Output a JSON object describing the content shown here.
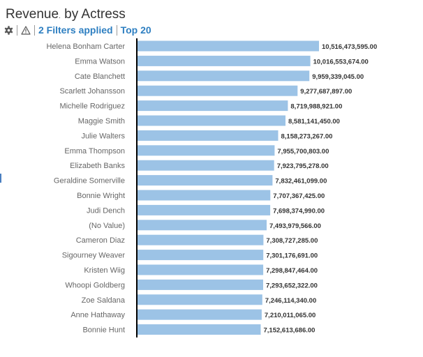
{
  "header": {
    "title_part1": "Revenue",
    "title_dot": ".",
    "title_part2": " by Actress",
    "filters_label": "2 Filters applied",
    "topn_label": "Top 20",
    "settings_icon": "gear-icon",
    "warning_icon": "warning-triangle-icon"
  },
  "colors": {
    "bar": "#9cc3e6",
    "axis": "#000000",
    "category_label": "#666666",
    "value_label": "#333333",
    "link": "#2e7fc1"
  },
  "chart_data": {
    "type": "bar",
    "orientation": "horizontal",
    "title": "Revenue by Actress",
    "xlabel": "",
    "ylabel": "",
    "grid": false,
    "legend": "none",
    "xlim": [
      0,
      10516473595.0
    ],
    "categories": [
      "Helena Bonham Carter",
      "Emma Watson",
      "Cate Blanchett",
      "Scarlett Johansson",
      "Michelle Rodriguez",
      "Maggie Smith",
      "Julie Walters",
      "Emma Thompson",
      "Elizabeth Banks",
      "Geraldine Somerville",
      "Bonnie Wright",
      "Judi Dench",
      "(No Value)",
      "Cameron Diaz",
      "Sigourney Weaver",
      "Kristen Wiig",
      "Whoopi Goldberg",
      "Zoe Saldana",
      "Anne Hathaway",
      "Bonnie Hunt"
    ],
    "values": [
      10516473595.0,
      10016553674.0,
      9959339045.0,
      9277687897.0,
      8719988921.0,
      8581141450.0,
      8158273267.0,
      7955700803.0,
      7923795278.0,
      7832461099.0,
      7707367425.0,
      7698374990.0,
      7493979566.0,
      7308727285.0,
      7301176691.0,
      7298847464.0,
      7293652322.0,
      7246114340.0,
      7210011065.0,
      7152613686.0
    ],
    "value_labels": [
      "10,516,473,595.00",
      "10,016,553,674.00",
      "9,959,339,045.00",
      "9,277,687,897.00",
      "8,719,988,921.00",
      "8,581,141,450.00",
      "8,158,273,267.00",
      "7,955,700,803.00",
      "7,923,795,278.00",
      "7,832,461,099.00",
      "7,707,367,425.00",
      "7,698,374,990.00",
      "7,493,979,566.00",
      "7,308,727,285.00",
      "7,301,176,691.00",
      "7,298,847,464.00",
      "7,293,652,322.00",
      "7,246,114,340.00",
      "7,210,011,065.00",
      "7,152,613,686.00"
    ]
  }
}
